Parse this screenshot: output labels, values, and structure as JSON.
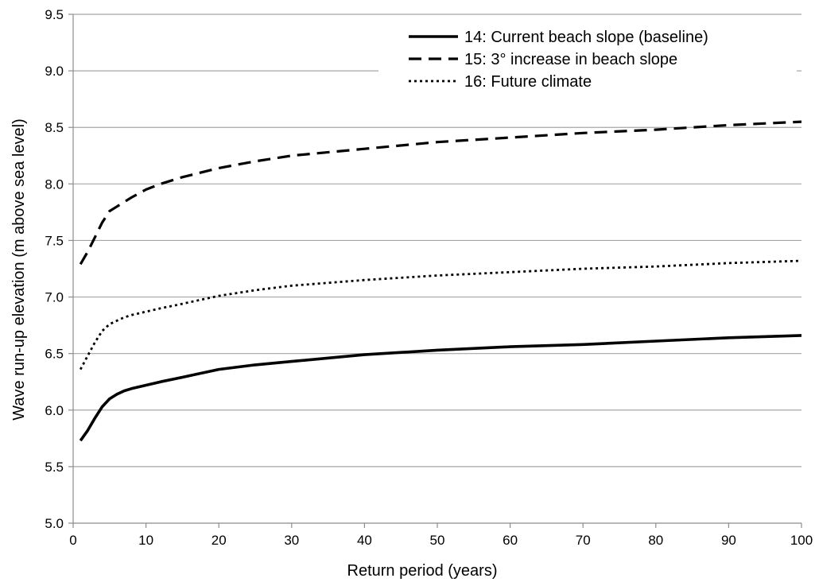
{
  "chart_data": {
    "type": "line",
    "title": "",
    "xlabel": "Return period (years)",
    "ylabel": "Wave run-up  elevation (m above sea level)",
    "xlim": [
      0,
      100
    ],
    "ylim": [
      5.0,
      9.5
    ],
    "xticks": [
      0,
      10,
      20,
      30,
      40,
      50,
      60,
      70,
      80,
      90,
      100
    ],
    "yticks": [
      5.0,
      5.5,
      6.0,
      6.5,
      7.0,
      7.5,
      8.0,
      8.5,
      9.0,
      9.5
    ],
    "xtick_labels": [
      "0",
      "10",
      "20",
      "30",
      "40",
      "50",
      "60",
      "70",
      "80",
      "90",
      "100"
    ],
    "ytick_labels": [
      "5.0",
      "5.5",
      "6.0",
      "6.5",
      "7.0",
      "7.5",
      "8.0",
      "8.5",
      "9.0",
      "9.5"
    ],
    "grid": "horizontal",
    "legend_position": "top-right",
    "series": [
      {
        "name": "14: Current beach slope (baseline)",
        "style": "solid",
        "color": "#000000",
        "x": [
          1,
          2,
          3,
          4,
          5,
          6,
          7,
          8,
          10,
          12,
          15,
          20,
          25,
          30,
          40,
          50,
          60,
          70,
          80,
          90,
          100
        ],
        "y": [
          5.73,
          5.82,
          5.93,
          6.03,
          6.1,
          6.14,
          6.17,
          6.19,
          6.22,
          6.25,
          6.29,
          6.36,
          6.4,
          6.43,
          6.49,
          6.53,
          6.56,
          6.58,
          6.61,
          6.64,
          6.66
        ]
      },
      {
        "name": "15: 3° increase in beach slope",
        "style": "dashed",
        "color": "#000000",
        "x": [
          1,
          2,
          3,
          4,
          5,
          6,
          7,
          8,
          10,
          12,
          15,
          20,
          25,
          30,
          40,
          50,
          60,
          70,
          80,
          90,
          100
        ],
        "y": [
          7.29,
          7.4,
          7.53,
          7.66,
          7.76,
          7.8,
          7.84,
          7.88,
          7.95,
          8.0,
          8.06,
          8.14,
          8.2,
          8.25,
          8.31,
          8.37,
          8.41,
          8.45,
          8.48,
          8.52,
          8.55
        ]
      },
      {
        "name": "16: Future climate",
        "style": "dotted",
        "color": "#000000",
        "x": [
          1,
          2,
          3,
          4,
          5,
          6,
          7,
          8,
          10,
          12,
          15,
          20,
          25,
          30,
          40,
          50,
          60,
          70,
          80,
          90,
          100
        ],
        "y": [
          6.36,
          6.48,
          6.6,
          6.7,
          6.76,
          6.79,
          6.82,
          6.84,
          6.87,
          6.9,
          6.94,
          7.01,
          7.06,
          7.1,
          7.15,
          7.19,
          7.22,
          7.25,
          7.27,
          7.3,
          7.32
        ]
      }
    ]
  }
}
